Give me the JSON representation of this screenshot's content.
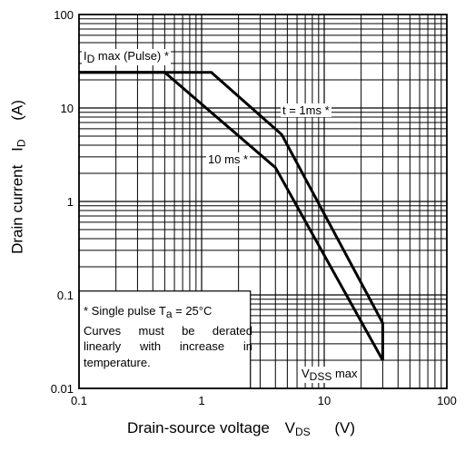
{
  "chart_data": {
    "type": "line",
    "x_scale": "log",
    "y_scale": "log",
    "xlim": [
      0.1,
      100
    ],
    "ylim": [
      0.01,
      100
    ],
    "grid": true,
    "xticks": [
      "0.1",
      "1",
      "10",
      "100"
    ],
    "yticks": [
      "0.01",
      "0.1",
      "1",
      "10",
      "100"
    ],
    "xlabel": {
      "main": "Drain-source voltage",
      "symbol": "V",
      "sub": "DS",
      "unit": "(V)"
    },
    "ylabel": {
      "main": "Drain current",
      "symbol": "I",
      "sub": "D",
      "unit": "(A)"
    },
    "series": [
      {
        "name": "t = 1ms *",
        "points": [
          [
            0.1,
            24
          ],
          [
            1.2,
            24
          ],
          [
            4.5,
            5.2
          ],
          [
            30,
            0.05
          ],
          [
            30,
            0.02
          ]
        ]
      },
      {
        "name": "10 ms *",
        "points": [
          [
            0.1,
            24
          ],
          [
            0.5,
            24
          ],
          [
            4.0,
            2.3
          ],
          [
            30,
            0.02
          ]
        ]
      }
    ],
    "annotations": [
      {
        "key": "id_max",
        "main": "I",
        "sub": "D",
        "rest": " max (Pulse) *"
      },
      {
        "key": "one_ms",
        "text": "t = 1ms *"
      },
      {
        "key": "ten_ms",
        "text": "10 ms *"
      },
      {
        "key": "vdss",
        "main": "V",
        "sub": "DSS",
        "rest": " max"
      }
    ],
    "note": {
      "line1_pre": "* Single pulse T",
      "line1_sub": "a",
      "line1_post": " = 25°C",
      "line2": "Curves must be derated",
      "line3": "linearly with increase in",
      "line4": "temperature."
    }
  }
}
